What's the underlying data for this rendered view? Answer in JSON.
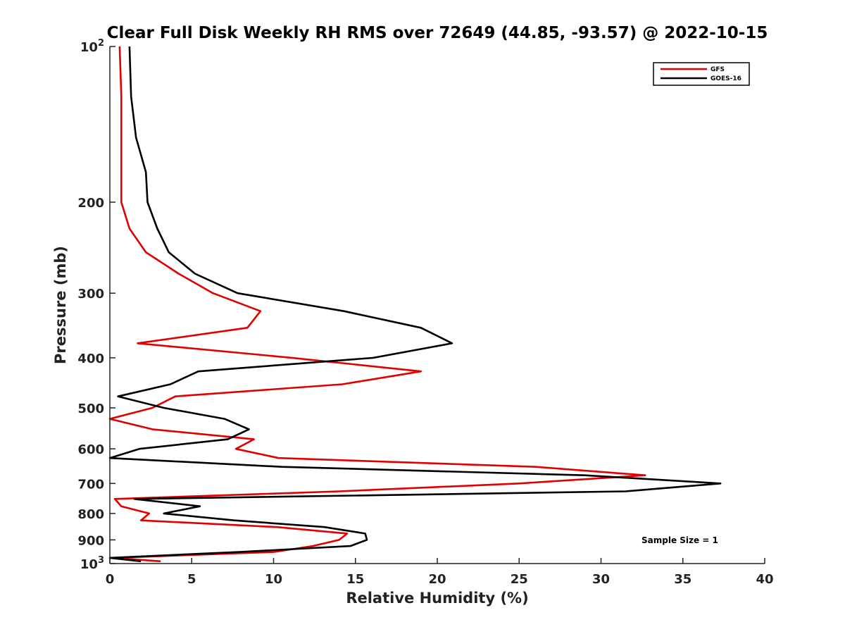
{
  "chart_data": {
    "type": "line",
    "title": "Clear Full Disk Weekly RH RMS over 72649 (44.85, -93.57) @ 2022-10-15",
    "xlabel": "Relative Humidity (%)",
    "ylabel": "Pressure (mb)",
    "xlim": [
      0,
      40
    ],
    "ylim": [
      100,
      1000
    ],
    "y_scale": "log",
    "y_reversed": true,
    "grid": false,
    "legend_position": "top-right",
    "x_ticks": [
      {
        "value": 0,
        "label": "0"
      },
      {
        "value": 5,
        "label": "5"
      },
      {
        "value": 10,
        "label": "10"
      },
      {
        "value": 15,
        "label": "15"
      },
      {
        "value": 20,
        "label": "20"
      },
      {
        "value": 25,
        "label": "25"
      },
      {
        "value": 30,
        "label": "30"
      },
      {
        "value": 35,
        "label": "35"
      },
      {
        "value": 40,
        "label": "40"
      }
    ],
    "y_ticks": [
      {
        "value": 100,
        "base": "10",
        "exp": "2"
      },
      {
        "value": 200,
        "label": "200"
      },
      {
        "value": 300,
        "label": "300"
      },
      {
        "value": 400,
        "label": "400"
      },
      {
        "value": 500,
        "label": "500"
      },
      {
        "value": 600,
        "label": "600"
      },
      {
        "value": 700,
        "label": "700"
      },
      {
        "value": 800,
        "label": "800"
      },
      {
        "value": 900,
        "label": "900"
      },
      {
        "value": 1000,
        "base": "10",
        "exp": "3"
      }
    ],
    "series": [
      {
        "name": "GFS",
        "color": "#e00000",
        "points": [
          [
            0.6,
            100
          ],
          [
            0.7,
            125
          ],
          [
            0.7,
            150
          ],
          [
            0.7,
            175
          ],
          [
            0.7,
            200
          ],
          [
            1.2,
            225
          ],
          [
            2.2,
            250
          ],
          [
            4.2,
            275
          ],
          [
            6.3,
            300
          ],
          [
            9.2,
            325
          ],
          [
            8.4,
            350
          ],
          [
            1.7,
            375
          ],
          [
            11.1,
            400
          ],
          [
            19.0,
            425
          ],
          [
            14.2,
            450
          ],
          [
            4.0,
            475
          ],
          [
            2.6,
            500
          ],
          [
            0.0,
            525
          ],
          [
            2.6,
            550
          ],
          [
            8.8,
            575
          ],
          [
            7.7,
            600
          ],
          [
            10.3,
            625
          ],
          [
            26.0,
            650
          ],
          [
            32.7,
            675
          ],
          [
            25.0,
            700
          ],
          [
            14.0,
            725
          ],
          [
            0.3,
            750
          ],
          [
            0.7,
            775
          ],
          [
            2.4,
            800
          ],
          [
            1.9,
            825
          ],
          [
            10.2,
            850
          ],
          [
            14.5,
            875
          ],
          [
            14.0,
            900
          ],
          [
            12.4,
            925
          ],
          [
            10.0,
            950
          ],
          [
            0.2,
            975
          ],
          [
            3.1,
            990
          ]
        ]
      },
      {
        "name": "GOES-16",
        "color": "#000000",
        "points": [
          [
            1.2,
            100
          ],
          [
            1.3,
            125
          ],
          [
            1.6,
            150
          ],
          [
            2.2,
            175
          ],
          [
            2.3,
            200
          ],
          [
            2.9,
            225
          ],
          [
            3.6,
            250
          ],
          [
            5.2,
            275
          ],
          [
            7.8,
            300
          ],
          [
            14.3,
            325
          ],
          [
            19.0,
            350
          ],
          [
            20.9,
            375
          ],
          [
            16.1,
            400
          ],
          [
            5.4,
            425
          ],
          [
            3.7,
            450
          ],
          [
            0.5,
            475
          ],
          [
            3.3,
            500
          ],
          [
            7.0,
            525
          ],
          [
            8.5,
            550
          ],
          [
            7.2,
            575
          ],
          [
            1.8,
            600
          ],
          [
            0.0,
            625
          ],
          [
            10.5,
            650
          ],
          [
            29.0,
            675
          ],
          [
            37.3,
            700
          ],
          [
            31.5,
            725
          ],
          [
            1.5,
            750
          ],
          [
            5.5,
            775
          ],
          [
            3.3,
            800
          ],
          [
            7.6,
            825
          ],
          [
            13.1,
            850
          ],
          [
            15.6,
            875
          ],
          [
            15.7,
            900
          ],
          [
            14.7,
            925
          ],
          [
            7.9,
            950
          ],
          [
            0.0,
            975
          ],
          [
            1.9,
            990
          ]
        ]
      }
    ],
    "annotation": "Sample Size = 1"
  }
}
